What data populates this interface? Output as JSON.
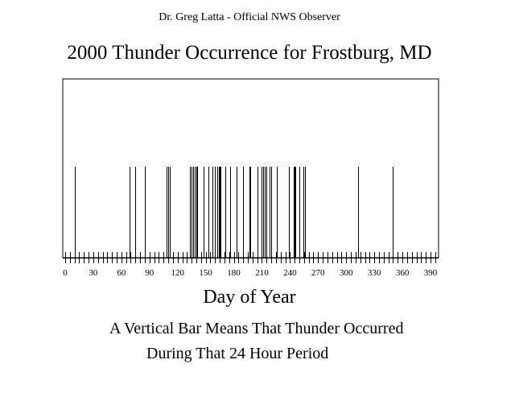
{
  "header": {
    "observer": "Dr. Greg Latta - Official NWS Observer"
  },
  "chart_data": {
    "type": "bar",
    "title": "2000 Thunder Occurrence for Frostburg, MD",
    "xlabel": "Day of Year",
    "ylabel": "",
    "xlim": [
      0,
      400
    ],
    "xticks": [
      0,
      30,
      60,
      90,
      120,
      150,
      180,
      210,
      240,
      270,
      300,
      330,
      360,
      390
    ],
    "thunder_days": [
      10,
      69,
      75,
      85,
      108,
      110,
      112,
      133,
      135,
      137,
      138,
      140,
      141,
      148,
      153,
      157,
      160,
      162,
      164,
      165,
      166,
      171,
      176,
      183,
      190,
      197,
      198,
      205,
      210,
      211,
      213,
      215,
      218,
      220,
      226,
      239,
      244,
      245,
      246,
      250,
      254,
      256,
      313,
      350
    ],
    "bar_value": 1,
    "annotations": [
      "A Vertical Bar Means That Thunder Occurred",
      "During That 24 Hour Period"
    ]
  },
  "colors": {
    "bar": "#000000",
    "axis": "#000000",
    "background": "#ffffff"
  }
}
